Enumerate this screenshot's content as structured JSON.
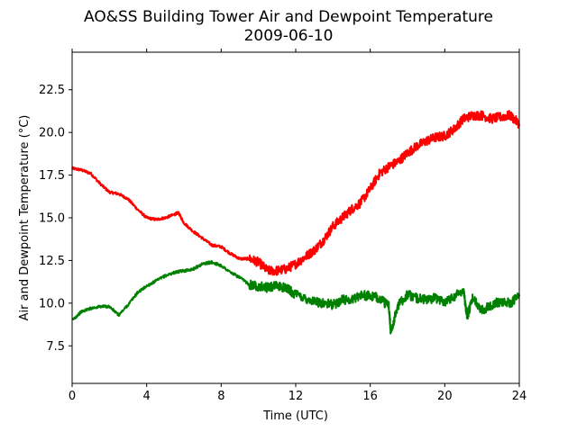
{
  "chart_data": {
    "type": "line",
    "title": "AO&SS Building Tower Air and Dewpoint Temperature",
    "subtitle": "2009-06-10",
    "xlabel": "Time (UTC)",
    "ylabel": "Air and Dewpoint Temperature (°C)",
    "xlim": [
      0,
      24
    ],
    "ylim": [
      5.3,
      24.7
    ],
    "xticks": [
      0,
      4,
      8,
      12,
      16,
      20,
      24
    ],
    "xtick_labels": [
      "0",
      "4",
      "8",
      "12",
      "16",
      "20",
      "24"
    ],
    "yticks": [
      7.5,
      10.0,
      12.5,
      15.0,
      17.5,
      20.0,
      22.5
    ],
    "ytick_labels": [
      "7.5",
      "10.0",
      "12.5",
      "15.0",
      "17.5",
      "20.0",
      "22.5"
    ],
    "grid": false,
    "series": [
      {
        "color": "#ff0000",
        "x": [
          0,
          0.5,
          1,
          1.5,
          2,
          2.5,
          3,
          3.5,
          4,
          4.5,
          5,
          5.5,
          5.7,
          6,
          6.5,
          7,
          7.5,
          8,
          8.5,
          9,
          9.5,
          10,
          10.5,
          11,
          11.5,
          12,
          12.5,
          13,
          13.5,
          14,
          14.5,
          15,
          15.5,
          16,
          16.5,
          17,
          17.5,
          18,
          18.5,
          19,
          19.5,
          20,
          20.5,
          21,
          21.5,
          22,
          22.5,
          23,
          23.5,
          24
        ],
        "y": [
          17.9,
          17.8,
          17.6,
          17.0,
          16.5,
          16.4,
          16.1,
          15.5,
          15.0,
          14.9,
          15.0,
          15.2,
          15.3,
          14.7,
          14.2,
          13.8,
          13.4,
          13.3,
          12.9,
          12.6,
          12.6,
          12.4,
          11.9,
          11.9,
          12.0,
          12.3,
          12.7,
          13.1,
          13.7,
          14.5,
          15.0,
          15.5,
          15.9,
          16.7,
          17.6,
          18.0,
          18.3,
          18.8,
          19.2,
          19.5,
          19.7,
          19.8,
          20.2,
          20.8,
          21.0,
          21.0,
          20.8,
          20.9,
          21.0,
          20.5
        ]
      },
      {
        "color": "#008000",
        "x": [
          0,
          0.5,
          1,
          1.5,
          2,
          2.5,
          3,
          3.5,
          4,
          4.5,
          5,
          5.5,
          6,
          6.5,
          7,
          7.5,
          8,
          8.5,
          9,
          9.5,
          10,
          10.5,
          11,
          11.5,
          12,
          12.5,
          13,
          13.5,
          14,
          14.5,
          15,
          15.5,
          16,
          16.5,
          17,
          17.1,
          17.5,
          18,
          18.5,
          19,
          19.5,
          20,
          20.5,
          21,
          21.2,
          21.5,
          22,
          22.5,
          23,
          23.5,
          24
        ],
        "y": [
          9.0,
          9.5,
          9.7,
          9.8,
          9.8,
          9.3,
          9.9,
          10.6,
          11.0,
          11.3,
          11.6,
          11.8,
          11.9,
          12.0,
          12.3,
          12.4,
          12.2,
          11.8,
          11.5,
          11.1,
          11.0,
          10.9,
          11.0,
          10.9,
          10.5,
          10.3,
          10.1,
          10.0,
          9.9,
          10.2,
          10.2,
          10.5,
          10.4,
          10.3,
          9.8,
          8.3,
          9.9,
          10.5,
          10.3,
          10.2,
          10.3,
          10.1,
          10.4,
          10.8,
          9.2,
          10.3,
          9.6,
          9.9,
          10.1,
          10.0,
          10.4
        ]
      }
    ]
  }
}
